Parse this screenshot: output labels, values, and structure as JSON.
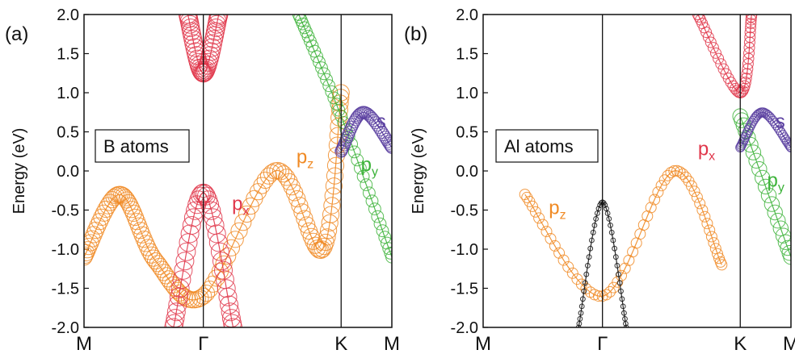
{
  "figure": {
    "panels": [
      "(a)",
      "(b)"
    ]
  },
  "chart_data": [
    {
      "type": "scatter",
      "panel_label": "(a)",
      "box_label": "B atoms",
      "title": "",
      "xlabel": "",
      "ylabel": "Energy (eV)",
      "ylim": [
        -2.0,
        2.0
      ],
      "yticks": [
        "2.0",
        "1.5",
        "1.0",
        "0.5",
        "0.0",
        "-0.5",
        "-1.0",
        "-1.5",
        "-2.0"
      ],
      "xticks": [
        "M",
        "Γ",
        "K",
        "M"
      ],
      "xtick_positions": [
        0,
        1,
        2.155,
        2.58
      ],
      "vertical_lines_at": [
        1,
        2.155
      ],
      "grid": false,
      "annotations": [
        {
          "text": "p",
          "sub": "x",
          "x": 1.24,
          "y": -0.5,
          "color": "#e0364a"
        },
        {
          "text": "p",
          "sub": "z",
          "x": 1.78,
          "y": 0.1,
          "color": "#f08a24"
        },
        {
          "text": "p",
          "sub": "y",
          "x": 2.32,
          "y": 0.0,
          "color": "#3db33a"
        },
        {
          "text": "s",
          "sub": "",
          "x": 2.45,
          "y": 0.55,
          "color": "#5a3fa0"
        }
      ],
      "series": [
        {
          "orbital": "pz",
          "color": "#f08a24",
          "x": [
            0,
            0.3,
            0.6,
            1.0,
            1.6,
            2.0,
            2.155
          ],
          "y": [
            -1.1,
            -0.3,
            -1.15,
            -1.6,
            0.0,
            -1.0,
            1.0
          ],
          "weight": 0.9
        },
        {
          "orbital": "px",
          "color": "#e0364a",
          "x": [
            0.75,
            1.0,
            1.25
          ],
          "y": [
            -2.0,
            -0.28,
            -2.0
          ],
          "weight": 1.0
        },
        {
          "orbital": "px_upper",
          "color": "#e0364a",
          "x": [
            0.87,
            1.0,
            1.13
          ],
          "y": [
            2.0,
            1.25,
            2.0
          ],
          "weight": 1.0
        },
        {
          "orbital": "py",
          "color": "#3db33a",
          "x": [
            1.8,
            2.155,
            2.58
          ],
          "y": [
            2.0,
            0.7,
            -1.1
          ],
          "weight": 0.6
        },
        {
          "orbital": "s",
          "color": "#5a3fa0",
          "x": [
            2.155,
            2.34,
            2.58
          ],
          "y": [
            0.25,
            0.75,
            0.3
          ],
          "weight": 0.6
        }
      ]
    },
    {
      "type": "scatter",
      "panel_label": "(b)",
      "box_label": "Al atoms",
      "title": "",
      "xlabel": "",
      "ylabel": "Energy (eV)",
      "ylim": [
        -2.0,
        2.0
      ],
      "yticks": [
        "2.0",
        "1.5",
        "1.0",
        "0.5",
        "0.0",
        "-0.5",
        "-1.0",
        "-1.5",
        "-2.0"
      ],
      "xticks": [
        "M",
        "Γ",
        "K",
        "M"
      ],
      "xtick_positions": [
        0,
        1,
        2.155,
        2.58
      ],
      "vertical_lines_at": [
        1,
        2.155
      ],
      "grid": false,
      "annotations": [
        {
          "text": "p",
          "sub": "z",
          "x": 0.55,
          "y": -0.55,
          "color": "#f08a24"
        },
        {
          "text": "p",
          "sub": "x",
          "x": 1.8,
          "y": 0.2,
          "color": "#e0364a"
        },
        {
          "text": "p",
          "sub": "y",
          "x": 2.38,
          "y": -0.2,
          "color": "#3db33a"
        },
        {
          "text": "s",
          "sub": "",
          "x": 2.45,
          "y": 0.55,
          "color": "#5a3fa0"
        }
      ],
      "series": [
        {
          "orbital": "pz",
          "color": "#f08a24",
          "x": [
            0.35,
            1.0,
            1.6,
            2.0
          ],
          "y": [
            -0.3,
            -1.6,
            0.0,
            -1.2
          ],
          "weight": 0.5
        },
        {
          "orbital": "px",
          "color": "#e0364a",
          "x": [
            1.8,
            2.155,
            2.25
          ],
          "y": [
            2.0,
            1.0,
            2.0
          ],
          "weight": 0.5
        },
        {
          "orbital": "py",
          "color": "#3db33a",
          "x": [
            2.155,
            2.58
          ],
          "y": [
            0.7,
            -1.1
          ],
          "weight": 0.8
        },
        {
          "orbital": "s",
          "color": "#5a3fa0",
          "x": [
            2.155,
            2.34,
            2.58
          ],
          "y": [
            0.3,
            0.75,
            0.3
          ],
          "weight": 0.4
        },
        {
          "orbital": "black",
          "color": "#111111",
          "x": [
            0.8,
            1.0,
            1.2
          ],
          "y": [
            -2.0,
            -0.4,
            -2.0
          ],
          "weight": 0.1
        }
      ]
    }
  ]
}
